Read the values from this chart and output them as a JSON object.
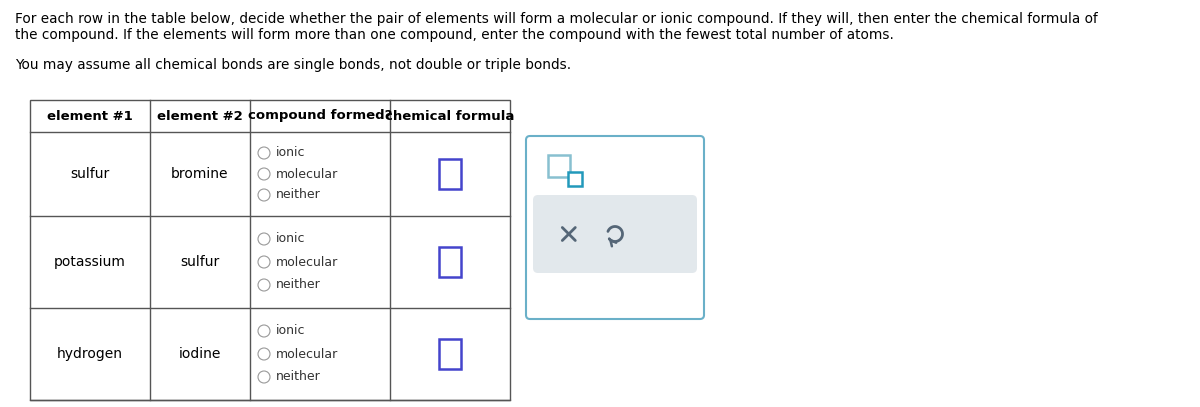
{
  "title_line1": "For each row in the table below, decide whether the pair of elements will form a molecular or ionic compound. If they will, then enter the chemical formula of",
  "title_line2": "the compound. If the elements will form more than one compound, enter the compound with the fewest total number of atoms.",
  "subtitle": "You may assume all chemical bonds are single bonds, not double or triple bonds.",
  "headers": [
    "element #1",
    "element #2",
    "compound formed?",
    "chemical formula"
  ],
  "rows": [
    {
      "el1": "sulfur",
      "el2": "bromine"
    },
    {
      "el1": "potassium",
      "el2": "sulfur"
    },
    {
      "el1": "hydrogen",
      "el2": "iodine"
    }
  ],
  "radio_options": [
    "ionic",
    "molecular",
    "neither"
  ],
  "bg_color": "#ffffff",
  "table_border_color": "#555555",
  "text_color": "#000000",
  "radio_color": "#bbbbbb",
  "input_box_color": "#4444cc",
  "panel_bg": "#e2e8ec",
  "panel_border": "#6ab0c8",
  "icon_color": "#556677"
}
